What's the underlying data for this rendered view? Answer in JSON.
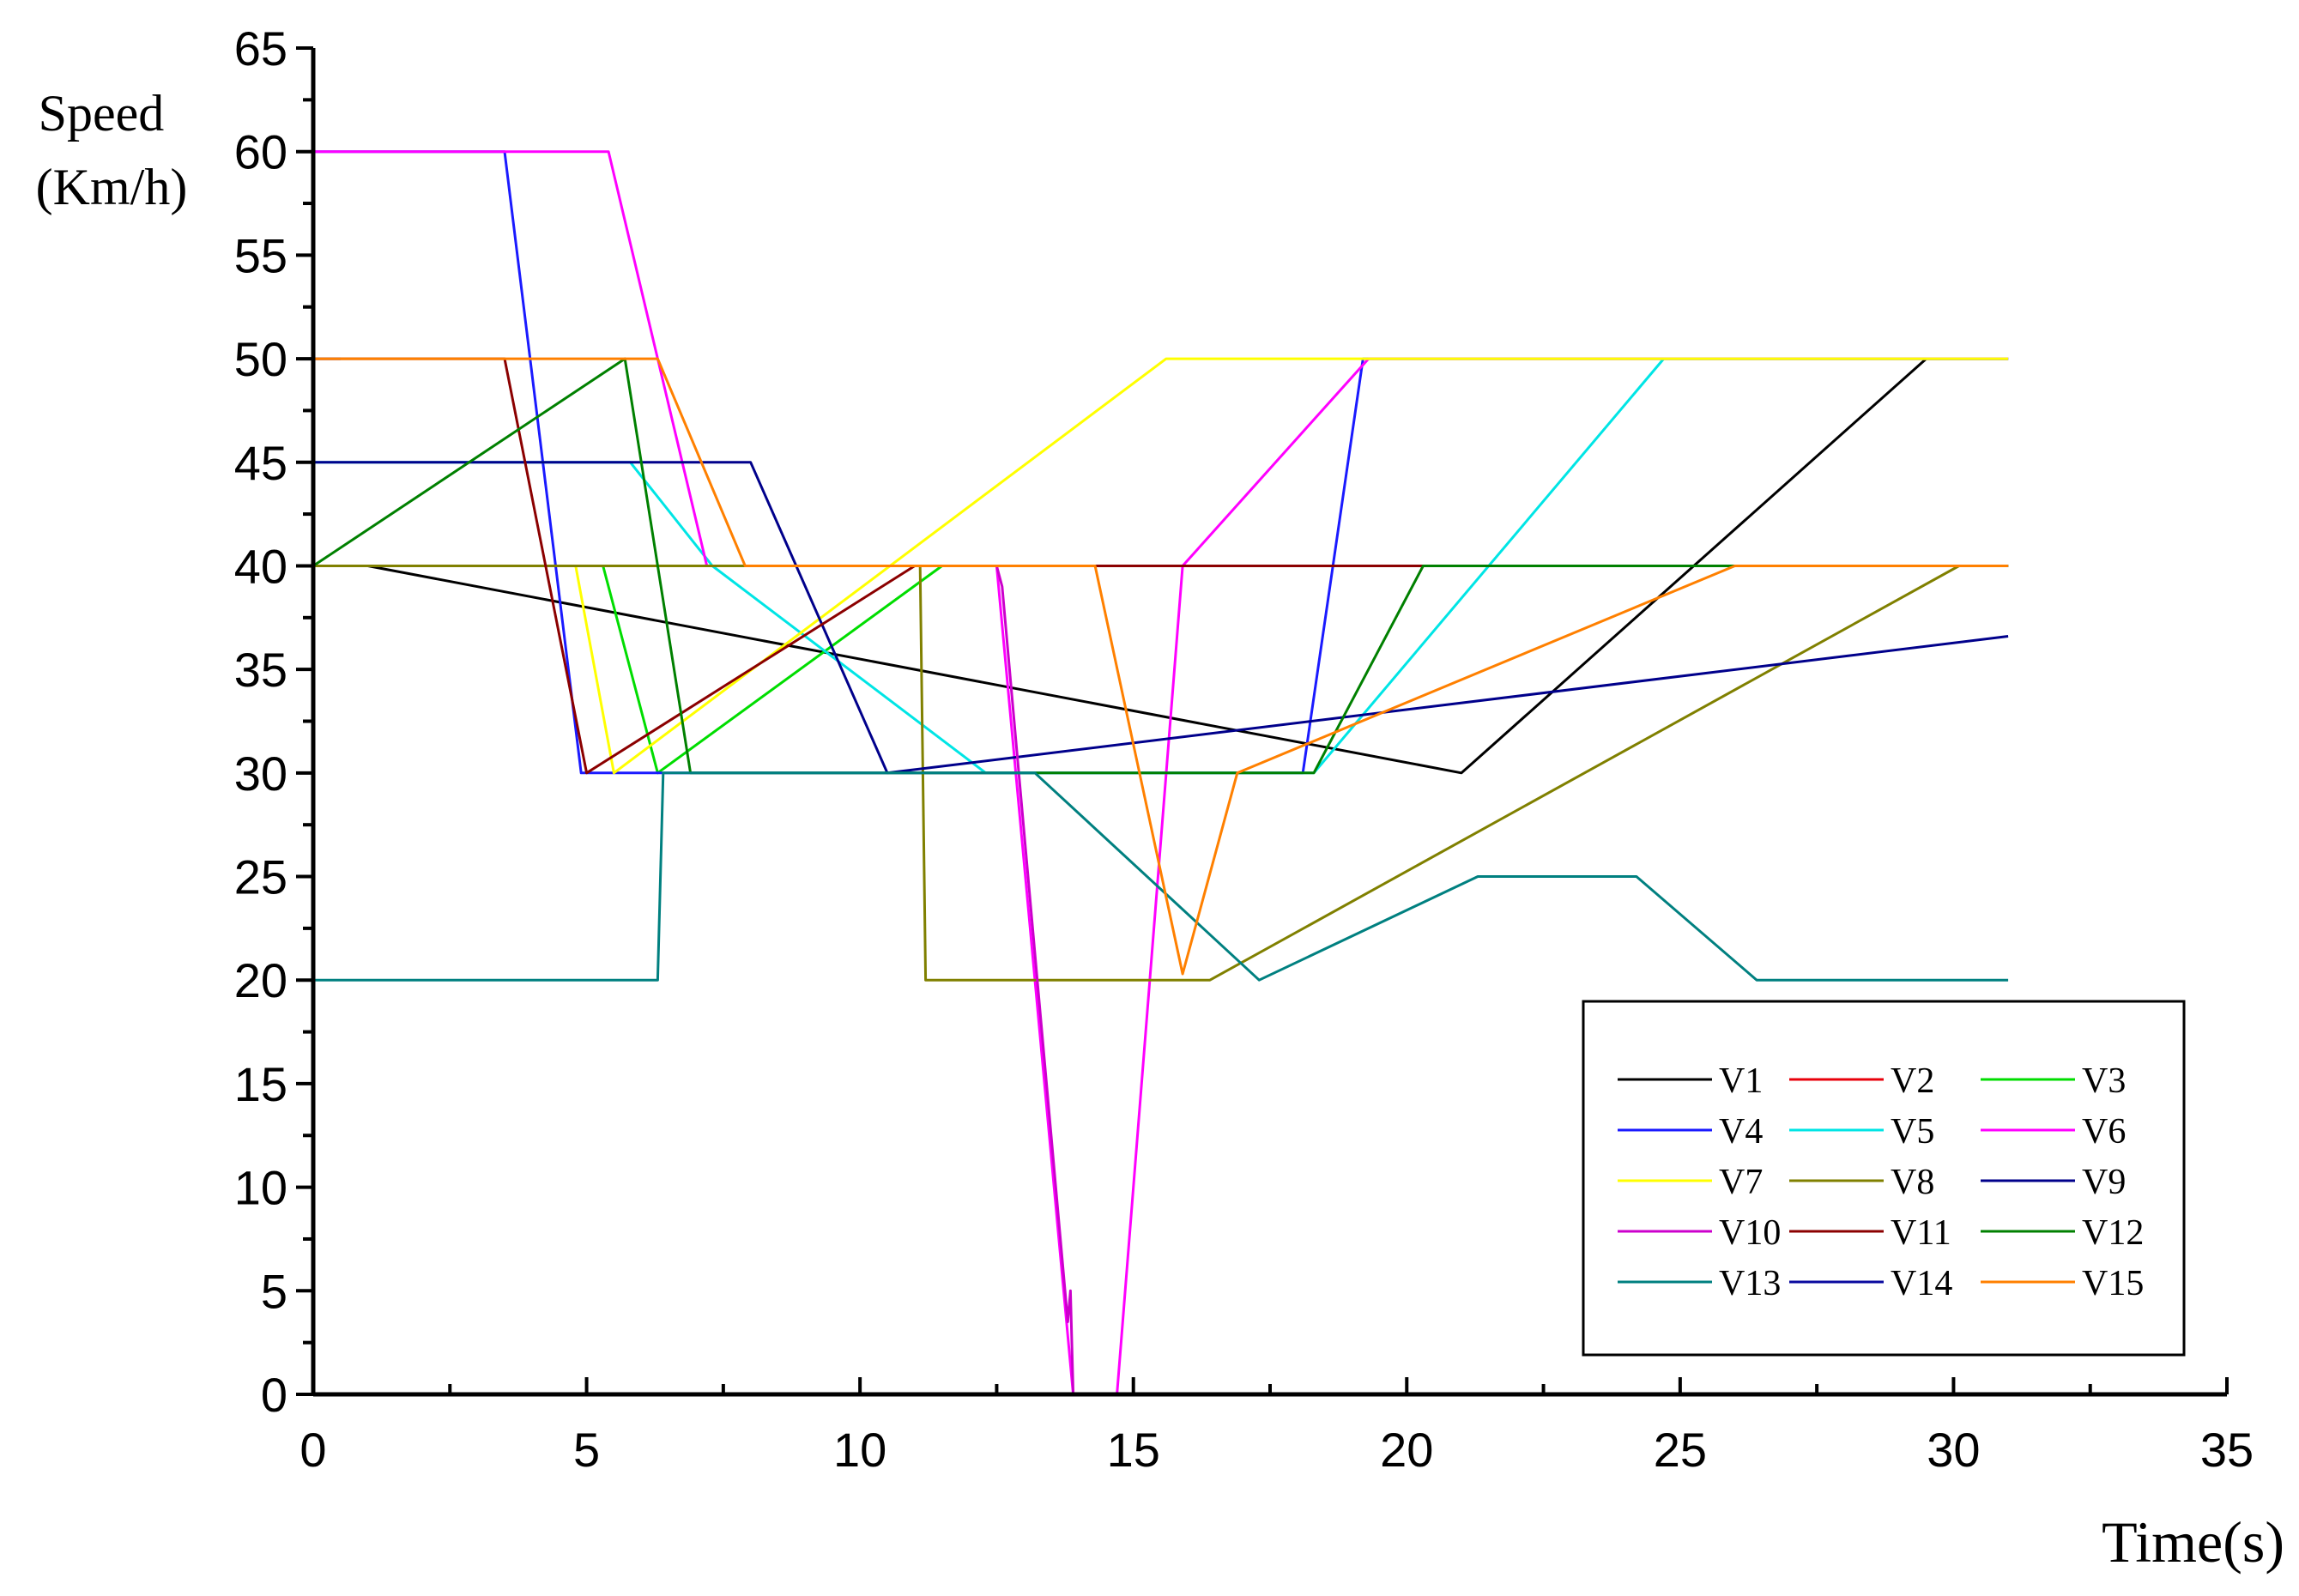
{
  "chart_data": {
    "type": "line",
    "xlabel": "Time(s)",
    "ylabel_lines": [
      "Speed",
      "(Km/h)"
    ],
    "xlim": [
      0,
      35
    ],
    "ylim": [
      0,
      65
    ],
    "x_ticks": [
      "0",
      "5",
      "10",
      "15",
      "20",
      "25",
      "30",
      "35"
    ],
    "y_ticks": [
      "0",
      "5",
      "10",
      "15",
      "20",
      "25",
      "30",
      "35",
      "40",
      "45",
      "50",
      "55",
      "60",
      "65"
    ],
    "grid": false,
    "legend_position": "bottom-right",
    "series": [
      {
        "name": "V1",
        "color": "#000000",
        "points": [
          [
            0,
            40
          ],
          [
            0.5,
            40
          ],
          [
            1,
            40
          ],
          [
            21,
            30
          ],
          [
            29.5,
            50
          ],
          [
            31,
            50
          ]
        ]
      },
      {
        "name": "V2",
        "color": "#e8000b",
        "points": [
          [
            0,
            40
          ],
          [
            31,
            40
          ]
        ]
      },
      {
        "name": "V3",
        "color": "#00dd00",
        "points": [
          [
            0,
            40
          ],
          [
            5.3,
            40
          ],
          [
            6.3,
            30
          ],
          [
            11.5,
            40
          ],
          [
            31,
            40
          ]
        ]
      },
      {
        "name": "V4",
        "color": "#1a1aff",
        "points": [
          [
            0,
            60
          ],
          [
            3.5,
            60
          ],
          [
            4.9,
            30
          ],
          [
            18.1,
            30
          ],
          [
            19.2,
            50
          ],
          [
            31,
            50
          ]
        ]
      },
      {
        "name": "V5",
        "color": "#00e5e5",
        "points": [
          [
            0,
            45
          ],
          [
            5.8,
            45
          ],
          [
            7.3,
            40
          ],
          [
            12.3,
            30
          ],
          [
            18.3,
            30
          ],
          [
            24.7,
            50
          ],
          [
            31,
            50
          ]
        ]
      },
      {
        "name": "V6",
        "color": "#ff00ff",
        "points": [
          [
            0,
            60
          ],
          [
            5.4,
            60
          ],
          [
            7.2,
            40
          ],
          [
            12.5,
            40
          ],
          [
            13.9,
            0
          ],
          [
            14.2,
            0
          ],
          [
            14.5,
            0
          ],
          [
            14.7,
            0
          ],
          [
            15.9,
            40
          ],
          [
            19.3,
            50
          ],
          [
            31,
            50
          ]
        ]
      },
      {
        "name": "V7",
        "color": "#ffff00",
        "points": [
          [
            0,
            40
          ],
          [
            4.8,
            40
          ],
          [
            5.5,
            30
          ],
          [
            15.6,
            50
          ],
          [
            31,
            50
          ]
        ]
      },
      {
        "name": "V8",
        "color": "#808000",
        "points": [
          [
            0,
            40
          ],
          [
            11.1,
            40
          ],
          [
            11.2,
            20
          ],
          [
            16.4,
            20
          ],
          [
            30.1,
            40
          ],
          [
            31,
            40
          ]
        ]
      },
      {
        "name": "V9",
        "color": "#00008b",
        "points": [
          [
            0,
            45
          ],
          [
            8,
            45
          ],
          [
            10.5,
            30
          ],
          [
            31,
            36.6
          ]
        ]
      },
      {
        "name": "V10",
        "color": "#cc00cc",
        "points": [
          [
            12.5,
            40
          ],
          [
            12.6,
            39
          ],
          [
            13.8,
            3.5
          ],
          [
            13.85,
            5
          ],
          [
            13.9,
            0
          ],
          [
            14.5,
            0
          ],
          [
            14.6,
            0
          ],
          [
            14.7,
            0
          ]
        ]
      },
      {
        "name": "V11",
        "color": "#8b0000",
        "points": [
          [
            0,
            50
          ],
          [
            3.5,
            50
          ],
          [
            5,
            30
          ],
          [
            11,
            40
          ],
          [
            31,
            40
          ]
        ]
      },
      {
        "name": "V12",
        "color": "#008000",
        "points": [
          [
            0,
            40
          ],
          [
            5.7,
            50
          ],
          [
            6.9,
            30
          ],
          [
            18.3,
            30
          ],
          [
            20.3,
            40
          ],
          [
            31,
            40
          ]
        ]
      },
      {
        "name": "V13",
        "color": "#008080",
        "points": [
          [
            0,
            20
          ],
          [
            6.3,
            20
          ],
          [
            6.4,
            30
          ],
          [
            13.2,
            30
          ],
          [
            17.3,
            20
          ],
          [
            21.3,
            25
          ],
          [
            24.2,
            25
          ],
          [
            26.4,
            20
          ],
          [
            31,
            20
          ]
        ]
      },
      {
        "name": "V14",
        "color": "#0a0a9f",
        "points": [
          [
            0,
            50
          ],
          [
            0.5,
            50
          ]
        ]
      },
      {
        "name": "V15",
        "color": "#ff8000",
        "points": [
          [
            0,
            50
          ],
          [
            6.3,
            50
          ],
          [
            7.9,
            40
          ],
          [
            14.3,
            40
          ],
          [
            15.9,
            20.3
          ],
          [
            16.9,
            30
          ],
          [
            26,
            40
          ],
          [
            31,
            40
          ]
        ]
      }
    ]
  }
}
